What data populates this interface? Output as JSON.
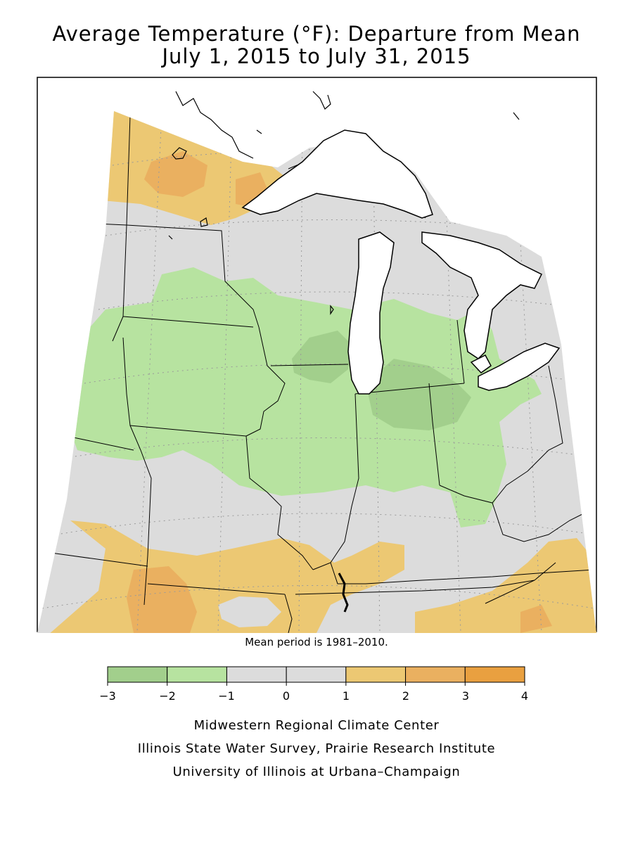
{
  "header": {
    "title": "Average Temperature (°F): Departure from Mean",
    "subtitle": "July 1, 2015 to July 31, 2015"
  },
  "map": {
    "note": "Mean period is 1981–2010."
  },
  "legend": {
    "breaks": [
      "−3",
      "−2",
      "−1",
      "0",
      "1",
      "2",
      "3",
      "4"
    ],
    "colors": [
      "#a2cf8c",
      "#b7e3a0",
      "#dcdcdc",
      "#dcdcdc",
      "#ecc873",
      "#eab060",
      "#e9a040"
    ]
  },
  "credits": {
    "line1": "Midwestern Regional Climate Center",
    "line2": "Illinois State Water Survey, Prairie Research Institute",
    "line3": "University of Illinois at Urbana–Champaign"
  }
}
